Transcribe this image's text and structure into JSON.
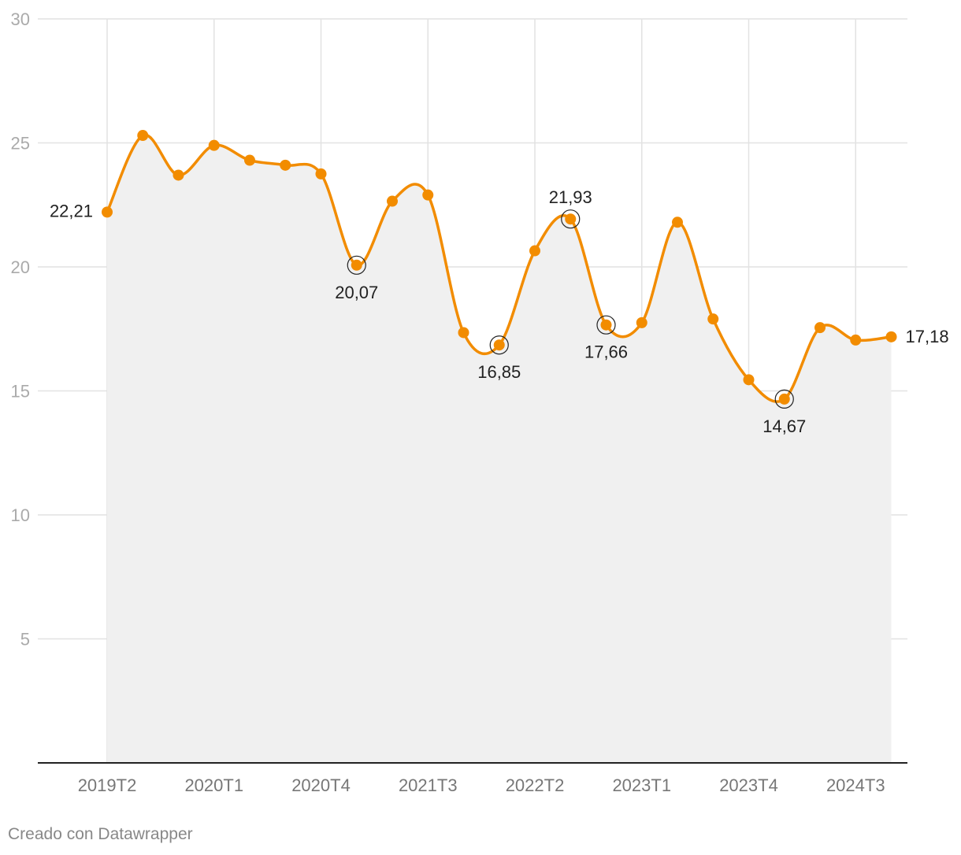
{
  "chart_data": {
    "type": "line",
    "title": "",
    "xlabel": "",
    "ylabel": "",
    "ylim": [
      0,
      30
    ],
    "y_ticks": [
      5,
      10,
      15,
      20,
      25,
      30
    ],
    "x": [
      "2019T2",
      "2019T3",
      "2019T4",
      "2020T1",
      "2020T2",
      "2020T3",
      "2020T4",
      "2021T1",
      "2021T2",
      "2021T3",
      "2021T4",
      "2022T1",
      "2022T2",
      "2022T3",
      "2022T4",
      "2023T1",
      "2023T2",
      "2023T3",
      "2023T4",
      "2024T1",
      "2024T2",
      "2024T3",
      "2024T4"
    ],
    "x_tick_labels": [
      "2019T2",
      "2020T1",
      "2020T4",
      "2021T3",
      "2022T2",
      "2023T1",
      "2023T4",
      "2024T3"
    ],
    "values": [
      22.21,
      25.3,
      23.7,
      24.9,
      24.3,
      24.1,
      23.75,
      20.07,
      22.65,
      22.9,
      17.35,
      16.85,
      20.65,
      21.93,
      17.66,
      17.75,
      21.8,
      17.9,
      15.45,
      14.67,
      17.55,
      17.05,
      17.18
    ],
    "series_color": "#f28c00",
    "area_color": "#f0f0f0",
    "grid": true,
    "annotations": [
      {
        "index": 0,
        "label": "22,21",
        "position": "left",
        "circled": false
      },
      {
        "index": 7,
        "label": "20,07",
        "position": "below",
        "circled": true
      },
      {
        "index": 11,
        "label": "16,85",
        "position": "below",
        "circled": true
      },
      {
        "index": 13,
        "label": "21,93",
        "position": "above",
        "circled": true
      },
      {
        "index": 14,
        "label": "17,66",
        "position": "below",
        "circled": true
      },
      {
        "index": 19,
        "label": "14,67",
        "position": "below",
        "circled": true
      },
      {
        "index": 22,
        "label": "17,18",
        "position": "right",
        "circled": false
      }
    ]
  },
  "credit": "Creado con Datawrapper"
}
